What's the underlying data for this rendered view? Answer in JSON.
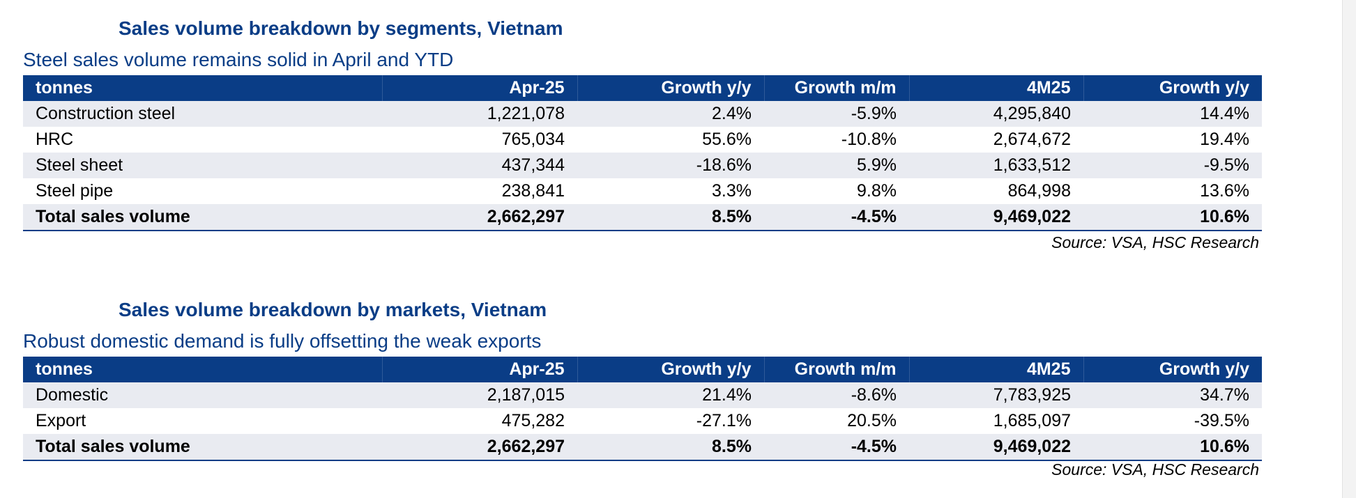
{
  "tables": [
    {
      "title": "Sales volume breakdown by segments, Vietnam",
      "subtitle": "Steel sales volume remains solid in April and YTD",
      "headers": [
        "tonnes",
        "Apr-25",
        "Growth y/y",
        "Growth m/m",
        "4M25",
        "Growth y/y"
      ],
      "rows": [
        [
          "Construction steel",
          "1,221,078",
          "2.4%",
          "-5.9%",
          "4,295,840",
          "14.4%"
        ],
        [
          "HRC",
          "765,034",
          "55.6%",
          "-10.8%",
          "2,674,672",
          "19.4%"
        ],
        [
          "Steel sheet",
          "437,344",
          "-18.6%",
          "5.9%",
          "1,633,512",
          "-9.5%"
        ],
        [
          "Steel pipe",
          "238,841",
          "3.3%",
          "9.8%",
          "864,998",
          "13.6%"
        ],
        [
          "Total sales volume",
          "2,662,297",
          "8.5%",
          "-4.5%",
          "9,469,022",
          "10.6%"
        ]
      ],
      "source": "Source: VSA, HSC Research"
    },
    {
      "title": "Sales volume breakdown by markets, Vietnam",
      "subtitle": "Robust domestic demand is fully offsetting the weak exports",
      "headers": [
        "tonnes",
        "Apr-25",
        "Growth y/y",
        "Growth m/m",
        "4M25",
        "Growth y/y"
      ],
      "rows": [
        [
          "Domestic",
          "2,187,015",
          "21.4%",
          "-8.6%",
          "7,783,925",
          "34.7%"
        ],
        [
          "Export",
          "475,282",
          "-27.1%",
          "20.5%",
          "1,685,097",
          "-39.5%"
        ],
        [
          "Total sales volume",
          "2,662,297",
          "8.5%",
          "-4.5%",
          "9,469,022",
          "10.6%"
        ]
      ],
      "source": "Source: VSA, HSC Research"
    }
  ],
  "colors": {
    "header_bg": "#0a3d86",
    "title_text": "#0a3d86",
    "shaded_row": "#e9ebf1"
  }
}
